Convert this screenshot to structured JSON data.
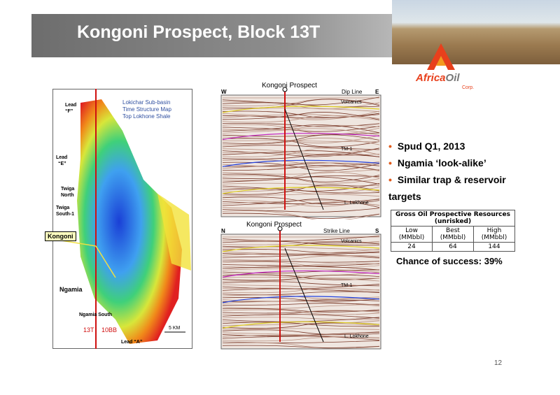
{
  "header": {
    "title": "Kongoni Prospect, Block 13T"
  },
  "logo": {
    "name_red": "Africa",
    "name_gray": "Oil",
    "sub": "Corp."
  },
  "map": {
    "legend": [
      "Lokichar Sub-basin",
      "Time Structure Map",
      "Top Lokhone Shale"
    ],
    "labels": {
      "lead_f": [
        "Lead",
        "“F”"
      ],
      "lead_e": [
        "Lead",
        "“E”"
      ],
      "twiga_north": [
        "Twiga",
        "North"
      ],
      "twiga_south": [
        "Twiga",
        "South-1"
      ],
      "kongoni": "Kongoni",
      "ngamia": "Ngamia",
      "ngamia_south": "Ngamia South",
      "block_13t": "13T",
      "block_10bb": "10BB",
      "scale": "5 KM",
      "lead_a": "Lead “A”"
    }
  },
  "seismic": [
    {
      "title": "Kongoni Prospect",
      "left": "W",
      "line": "Dip Line",
      "right": "E",
      "horizons": [
        "Volcanics",
        "TM-1",
        "L. Lokhone"
      ]
    },
    {
      "title": "Kongoni Prospect",
      "left": "N",
      "line": "Strike Line",
      "right": "S",
      "horizons": [
        "Volcanics",
        "TM-1",
        "L. Lokhone"
      ]
    }
  ],
  "bullets": [
    "Spud Q1, 2013",
    "Ngamia ‘look-alike’",
    "Similar trap & reservoir targets"
  ],
  "table": {
    "title": "Gross Oil Prospective Resources (unrisked)",
    "headers": [
      [
        "Low",
        "(MMbbl)"
      ],
      [
        "Best",
        "(MMbbl)"
      ],
      [
        "High",
        "(MMbbl)"
      ]
    ],
    "rows": [
      [
        "24",
        "64",
        "144"
      ]
    ]
  },
  "chance": "Chance of success: 39%",
  "page_number": "12"
}
